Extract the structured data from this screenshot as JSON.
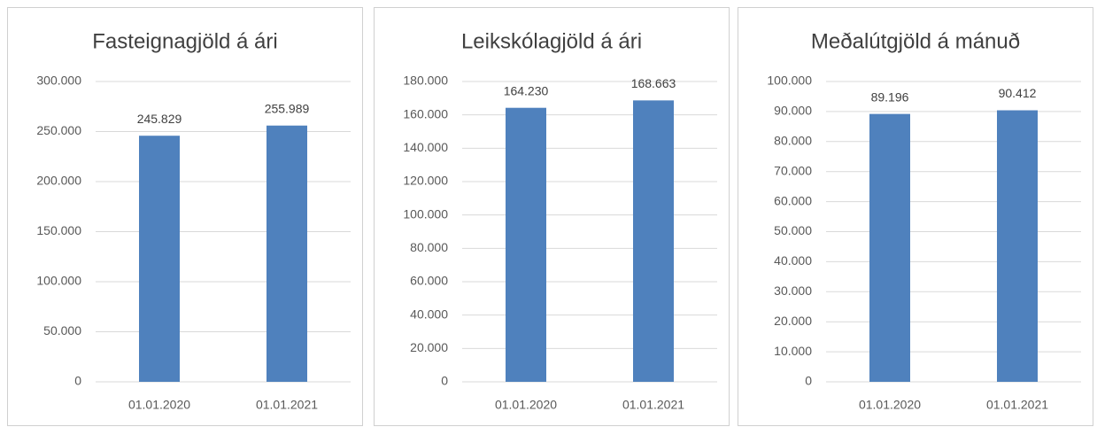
{
  "chart_data": [
    {
      "type": "bar",
      "title": "Fasteignagjöld á ári",
      "categories": [
        "01.01.2020",
        "01.01.2021"
      ],
      "values": [
        245829,
        255989
      ],
      "value_labels": [
        "245.829",
        "255.989"
      ],
      "color": "#4f81bd",
      "ylim": [
        0,
        300000
      ],
      "grid": true,
      "yticks": [
        0,
        {
          "value": 50000,
          "label": "50.000"
        },
        {
          "value": 100000,
          "label": "100.000"
        },
        {
          "value": 150000,
          "label": "150.000"
        },
        {
          "value": 200000,
          "label": "200.000"
        },
        {
          "value": 250000,
          "label": "250.000"
        },
        {
          "value": 300000,
          "label": "300.000"
        }
      ]
    },
    {
      "type": "bar",
      "title": "Leikskólagjöld  á ári",
      "categories": [
        "01.01.2020",
        "01.01.2021"
      ],
      "values": [
        164230,
        168663
      ],
      "value_labels": [
        "164.230",
        "168.663"
      ],
      "color": "#4f81bd",
      "ylim": [
        0,
        180000
      ],
      "grid": true,
      "yticks": [
        0,
        {
          "value": 20000,
          "label": "20.000"
        },
        {
          "value": 40000,
          "label": "40.000"
        },
        {
          "value": 60000,
          "label": "60.000"
        },
        {
          "value": 80000,
          "label": "80.000"
        },
        {
          "value": 100000,
          "label": "100.000"
        },
        {
          "value": 120000,
          "label": "120.000"
        },
        {
          "value": 140000,
          "label": "140.000"
        },
        {
          "value": 160000,
          "label": "160.000"
        },
        {
          "value": 180000,
          "label": "180.000"
        }
      ]
    },
    {
      "type": "bar",
      "title": "Meðalútgjöld á mánuð",
      "categories": [
        "01.01.2020",
        "01.01.2021"
      ],
      "values": [
        89196,
        90412
      ],
      "value_labels": [
        "89.196",
        "90.412"
      ],
      "color": "#4f81bd",
      "ylim": [
        0,
        100000
      ],
      "grid": true,
      "yticks": [
        0,
        {
          "value": 10000,
          "label": "10.000"
        },
        {
          "value": 20000,
          "label": "20.000"
        },
        {
          "value": 30000,
          "label": "30.000"
        },
        {
          "value": 40000,
          "label": "40.000"
        },
        {
          "value": 50000,
          "label": "50.000"
        },
        {
          "value": 60000,
          "label": "60.000"
        },
        {
          "value": 70000,
          "label": "70.000"
        },
        {
          "value": 80000,
          "label": "80.000"
        },
        {
          "value": 90000,
          "label": "90.000"
        },
        {
          "value": 100000,
          "label": "100.000"
        }
      ]
    }
  ]
}
